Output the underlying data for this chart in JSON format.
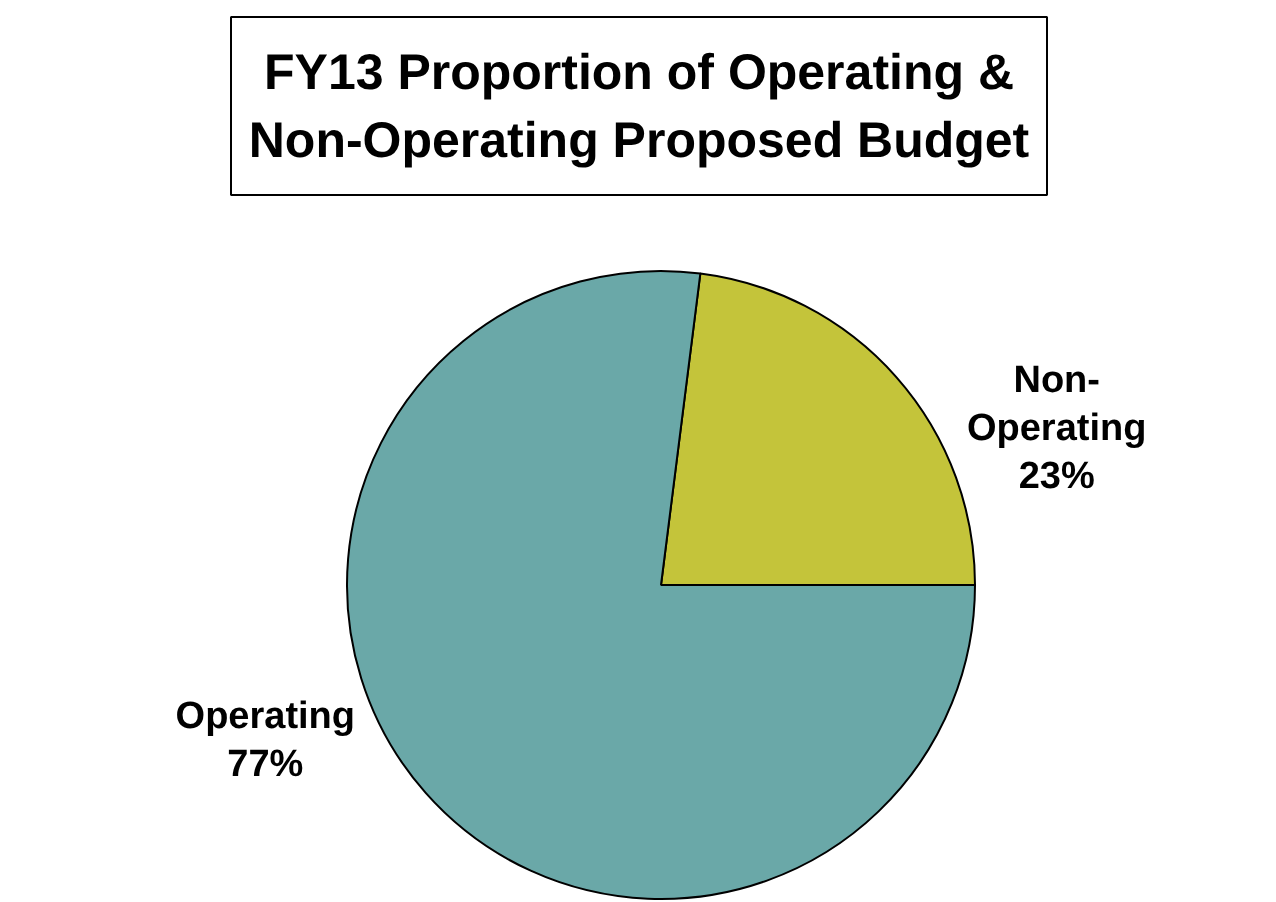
{
  "chart_data": {
    "type": "pie",
    "title": "FY13 Proportion of Operating & Non-Operating Proposed Budget",
    "categories": [
      "Non-Operating",
      "Operating"
    ],
    "values": [
      23,
      77
    ],
    "colors": [
      "#c4c43a",
      "#6aa8a8"
    ],
    "value_labels": [
      "23%",
      "77%"
    ]
  }
}
